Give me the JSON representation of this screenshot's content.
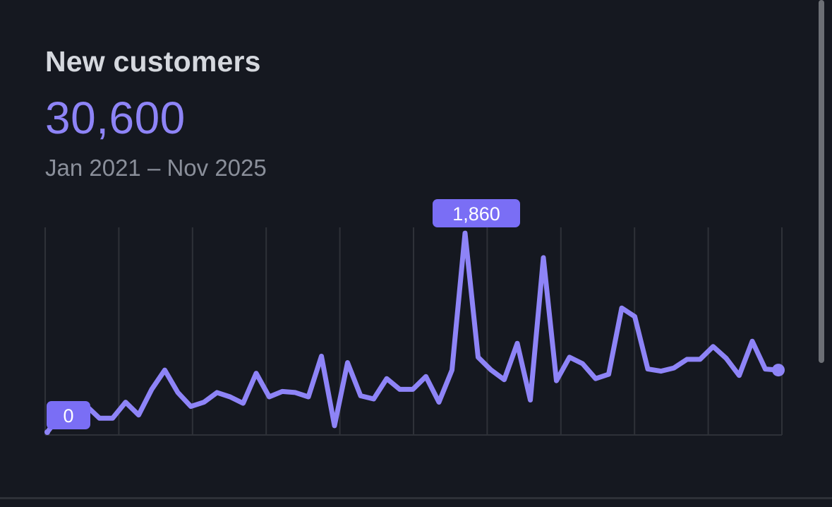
{
  "card": {
    "title": "New customers",
    "total": "30,600",
    "date_range": "Jan 2021 – Nov 2025"
  },
  "colors": {
    "background": "#151820",
    "line": "#8e84f7",
    "badge": "#7a6ef5",
    "badge_text": "#ffffff",
    "grid": "#2e3138",
    "title": "#d5d8de",
    "muted": "#8a8f9a"
  },
  "chart_data": {
    "type": "line",
    "series": [
      {
        "values": [
          0,
          160,
          190,
          245,
          130,
          130,
          280,
          160,
          400,
          580,
          370,
          240,
          280,
          370,
          330,
          270,
          550,
          330,
          380,
          370,
          330,
          710,
          60,
          650,
          340,
          310,
          500,
          400,
          400,
          520,
          280,
          580,
          1860,
          700,
          580,
          490,
          830,
          300,
          1630,
          480,
          700,
          640,
          500,
          540,
          1160,
          1080,
          590,
          570,
          600,
          680,
          680,
          800,
          690,
          530,
          850,
          590,
          580
        ]
      }
    ],
    "x_range": [
      "Jan 2021",
      "Nov 2025"
    ],
    "ylim": [
      0,
      1900
    ],
    "vertical_gridlines": 11,
    "annotations": [
      {
        "label": "1,860",
        "index": 32
      },
      {
        "label": "0",
        "index": 0
      }
    ],
    "endpoint_marker": true,
    "grid": true
  }
}
